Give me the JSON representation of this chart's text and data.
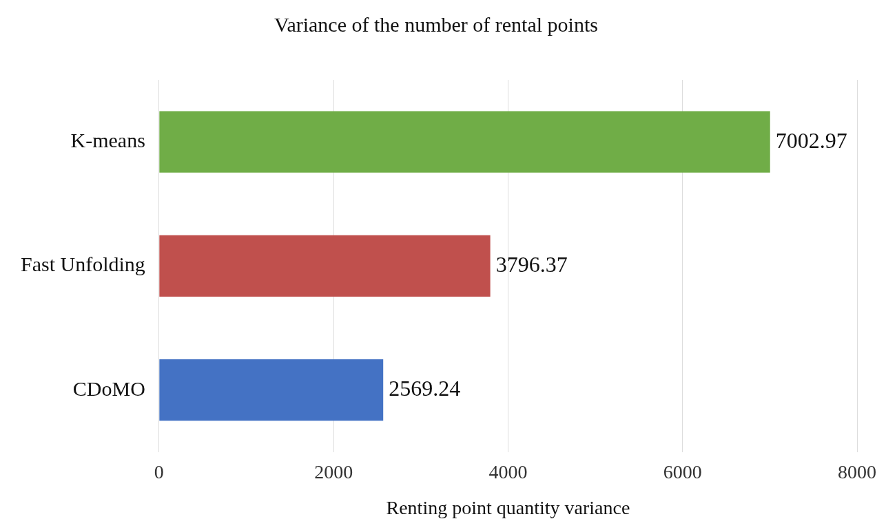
{
  "chart_data": {
    "type": "bar",
    "orientation": "horizontal",
    "title": "Variance of the number of rental points",
    "xlabel": "Renting point quantity variance",
    "categories": [
      "K-means",
      "Fast Unfolding",
      "CDoMO"
    ],
    "values": [
      7002.97,
      3796.37,
      2569.24
    ],
    "colors": [
      "#70ad47",
      "#c0504d",
      "#4472c4"
    ],
    "xlim": [
      0,
      8000
    ],
    "xticks": [
      0,
      2000,
      4000,
      6000,
      8000
    ],
    "grid": "x",
    "data_labels": true
  }
}
